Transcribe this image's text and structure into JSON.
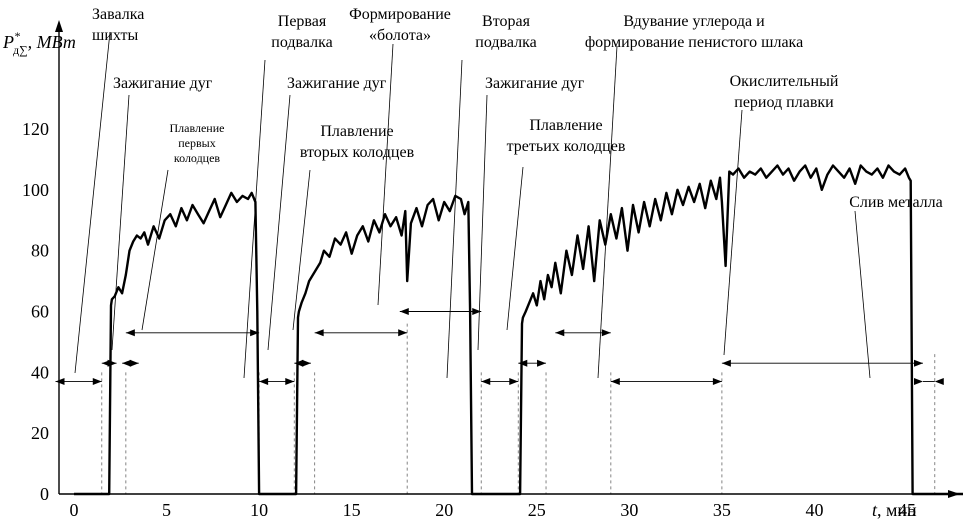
{
  "chart_data": {
    "type": "line",
    "ylabel": {
      "base": "P",
      "sup": "*",
      "sub": "д∑",
      "unit": ", МВт"
    },
    "xlabel": {
      "var": "t",
      "unit": ", мин"
    },
    "xlim": [
      -1,
      51
    ],
    "ylim": [
      0,
      137
    ],
    "x_ticks": [
      0,
      5,
      10,
      15,
      20,
      25,
      30,
      35,
      40,
      45
    ],
    "y_ticks": [
      0,
      20,
      40,
      60,
      80,
      100,
      120
    ],
    "grid": false,
    "series": [
      {
        "x": [
          0,
          1.9,
          2.0,
          2.05,
          2.2,
          2.4,
          2.6,
          2.8,
          3.0,
          3.2,
          3.4,
          3.6,
          3.8,
          4.0,
          4.3,
          4.6,
          4.9,
          5.2,
          5.5,
          5.8,
          6.1,
          6.4,
          6.7,
          7.0,
          7.3,
          7.6,
          7.9,
          8.2,
          8.5,
          8.8,
          9.1,
          9.4,
          9.6,
          9.8,
          9.9,
          10.0,
          12.0,
          12.1,
          12.15,
          12.3,
          12.5,
          12.7,
          12.9,
          13.1,
          13.3,
          13.5,
          13.8,
          14.1,
          14.4,
          14.7,
          15.0,
          15.3,
          15.6,
          15.9,
          16.2,
          16.5,
          16.8,
          17.1,
          17.4,
          17.7,
          17.9,
          18.0,
          18.2,
          18.5,
          18.8,
          19.1,
          19.4,
          19.7,
          20.0,
          20.3,
          20.6,
          20.9,
          21.1,
          21.3,
          21.4,
          21.5,
          24.1,
          24.2,
          24.25,
          24.4,
          24.6,
          24.8,
          25.0,
          25.2,
          25.4,
          25.6,
          25.8,
          26.0,
          26.3,
          26.6,
          26.9,
          27.2,
          27.5,
          27.8,
          28.1,
          28.4,
          28.7,
          29.0,
          29.3,
          29.6,
          29.9,
          30.2,
          30.5,
          30.8,
          31.1,
          31.4,
          31.7,
          32.0,
          32.3,
          32.6,
          32.9,
          33.2,
          33.5,
          33.8,
          34.1,
          34.4,
          34.7,
          34.9,
          35.0,
          35.2,
          35.4,
          35.6,
          35.9,
          36.2,
          36.5,
          36.8,
          37.1,
          37.4,
          37.7,
          38.0,
          38.3,
          38.6,
          38.9,
          39.2,
          39.5,
          39.8,
          40.1,
          40.4,
          40.7,
          41.0,
          41.3,
          41.6,
          41.9,
          42.2,
          42.5,
          42.8,
          43.1,
          43.4,
          43.7,
          44.0,
          44.3,
          44.6,
          44.9,
          45.1,
          45.2,
          45.3,
          51
        ],
        "y": [
          0,
          0,
          62,
          64,
          65,
          68,
          66,
          72,
          80,
          83,
          85,
          84,
          86,
          82,
          88,
          84,
          90,
          92,
          88,
          94,
          90,
          95,
          92,
          89,
          93,
          97,
          91,
          95,
          99,
          96,
          98,
          97,
          99,
          96,
          60,
          0,
          0,
          58,
          60,
          63,
          66,
          70,
          72,
          74,
          76,
          80,
          78,
          84,
          82,
          86,
          79,
          85,
          88,
          83,
          90,
          86,
          92,
          88,
          91,
          85,
          93,
          70,
          89,
          94,
          88,
          95,
          97,
          90,
          96,
          93,
          98,
          97,
          92,
          96,
          60,
          0,
          0,
          56,
          58,
          60,
          63,
          66,
          62,
          70,
          64,
          72,
          68,
          76,
          66,
          80,
          72,
          85,
          74,
          88,
          70,
          90,
          82,
          92,
          84,
          94,
          80,
          95,
          86,
          96,
          88,
          97,
          90,
          99,
          92,
          100,
          95,
          101,
          96,
          102,
          94,
          103,
          97,
          104,
          96,
          75,
          106,
          105,
          107,
          104,
          106,
          105,
          107,
          104,
          106,
          108,
          105,
          107,
          103,
          106,
          108,
          104,
          107,
          100,
          105,
          108,
          106,
          104,
          107,
          102,
          108,
          106,
          105,
          107,
          104,
          108,
          106,
          105,
          107,
          104,
          103,
          0,
          0
        ]
      }
    ],
    "annotations": [
      {
        "lines": [
          "Завалка",
          "шихты"
        ],
        "size": 16
      },
      {
        "lines": [
          "Зажигание дуг"
        ],
        "size": 16
      },
      {
        "lines": [
          "Плавление",
          "первых",
          "колодцев"
        ],
        "size": 12
      },
      {
        "lines": [
          "Первая",
          "подвалка"
        ],
        "size": 16
      },
      {
        "lines": [
          "Зажигание дуг"
        ],
        "size": 16
      },
      {
        "lines": [
          "Формирование",
          "«болота»"
        ],
        "size": 16
      },
      {
        "lines": [
          "Плавление",
          "вторых колодцев"
        ],
        "size": 16
      },
      {
        "lines": [
          "Вторая",
          "подвалка"
        ],
        "size": 16
      },
      {
        "lines": [
          "Зажигание дуг"
        ],
        "size": 16
      },
      {
        "lines": [
          "Плавление",
          "третьих колодцев"
        ],
        "size": 16
      },
      {
        "lines": [
          "Вдувание углерода и",
          "формирование пенистого шлака"
        ],
        "size": 16
      },
      {
        "lines": [
          "Окислительный",
          "период плавки"
        ],
        "size": 16
      },
      {
        "lines": [
          "Слив металла"
        ],
        "size": 16
      }
    ],
    "intervals": [
      {
        "start": -1,
        "end": 1.5,
        "y": 37
      },
      {
        "start": 1.5,
        "end": 2.3,
        "y": 43
      },
      {
        "start": 2.6,
        "end": 3.5,
        "y": 43
      },
      {
        "start": 2.8,
        "end": 10.0,
        "y": 53
      },
      {
        "start": 10.0,
        "end": 11.9,
        "y": 37
      },
      {
        "start": 11.9,
        "end": 12.8,
        "y": 43
      },
      {
        "start": 13.0,
        "end": 18.0,
        "y": 53
      },
      {
        "start": 17.6,
        "end": 22.0,
        "y": 60
      },
      {
        "start": 22.0,
        "end": 24.0,
        "y": 37
      },
      {
        "start": 24.0,
        "end": 25.5,
        "y": 43
      },
      {
        "start": 26.0,
        "end": 29.0,
        "y": 53
      },
      {
        "start": 29.0,
        "end": 35.0,
        "y": 37
      },
      {
        "start": 35.0,
        "end": 46.5,
        "y": 43
      },
      {
        "start": 46.5,
        "end": 51.0,
        "y": 37
      }
    ]
  }
}
